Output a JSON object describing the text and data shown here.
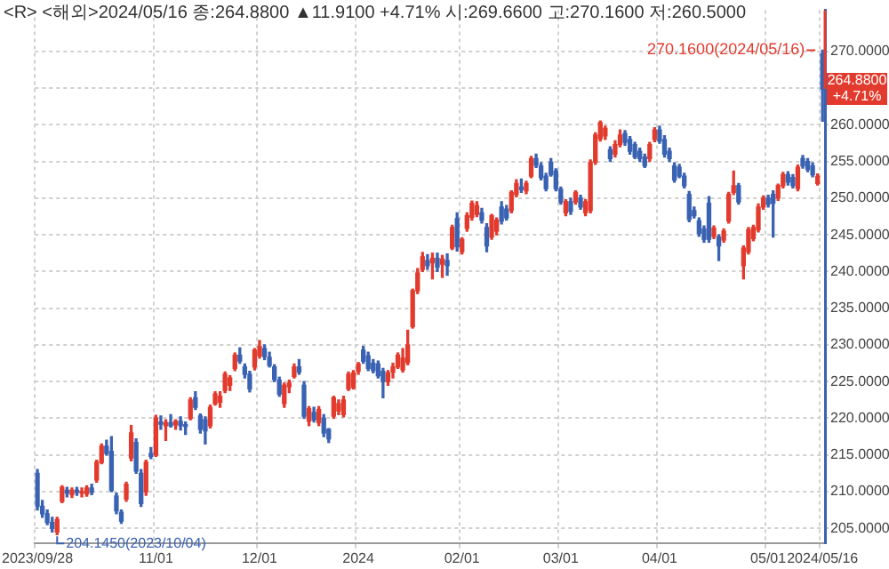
{
  "chart_data": {
    "type": "candlestick",
    "title": "<R> <해외>2024/05/16 종:264.8800 ▲11.9100 +4.71% 시:269.6600 고:270.1600 저:260.5000",
    "categories": [
      "2023/09/28",
      null,
      null,
      null,
      null,
      null,
      null,
      null,
      null,
      null,
      null,
      null,
      null,
      null,
      null,
      null,
      null,
      null,
      null,
      null,
      null,
      null,
      null,
      null,
      "11/01",
      null,
      null,
      null,
      null,
      null,
      null,
      null,
      null,
      null,
      null,
      null,
      null,
      null,
      null,
      null,
      null,
      null,
      null,
      null,
      null,
      "12/01",
      null,
      null,
      null,
      null,
      null,
      null,
      null,
      null,
      null,
      null,
      null,
      null,
      null,
      null,
      null,
      null,
      null,
      null,
      null,
      "2024",
      null,
      null,
      null,
      null,
      null,
      null,
      null,
      null,
      null,
      null,
      null,
      null,
      null,
      null,
      null,
      null,
      null,
      null,
      null,
      null,
      "02/01",
      null,
      null,
      null,
      null,
      null,
      null,
      null,
      null,
      null,
      null,
      null,
      null,
      null,
      null,
      null,
      null,
      null,
      null,
      null,
      "03/01",
      null,
      null,
      null,
      null,
      null,
      null,
      null,
      null,
      null,
      null,
      null,
      null,
      null,
      null,
      null,
      null,
      null,
      null,
      null,
      "04/01",
      null,
      null,
      null,
      null,
      null,
      null,
      null,
      null,
      null,
      null,
      null,
      null,
      null,
      null,
      null,
      null,
      null,
      null,
      null,
      null,
      null,
      "05/01",
      null,
      null,
      null,
      null,
      null,
      null,
      null,
      null,
      null,
      null,
      "2024/05/16"
    ],
    "ohlc": [
      [
        212.5,
        213,
        207.5,
        208.0
      ],
      [
        208,
        208.8,
        206.5,
        207.0
      ],
      [
        207,
        207.5,
        205.5,
        205.8
      ],
      [
        205.8,
        206.5,
        204.5,
        205.0
      ],
      [
        204.5,
        206.5,
        204.145,
        206.2
      ],
      [
        208.7,
        210.8,
        208.5,
        210.6
      ],
      [
        210.2,
        210.6,
        209.3,
        209.8
      ],
      [
        209.6,
        210.5,
        209.2,
        210.2
      ],
      [
        210.2,
        210.6,
        209.5,
        209.9
      ],
      [
        209.8,
        210.5,
        209.3,
        210.0
      ],
      [
        209.7,
        210.8,
        209.4,
        210.5
      ],
      [
        210.5,
        211,
        209.6,
        209.9
      ],
      [
        211.6,
        214.3,
        211.3,
        214.0
      ],
      [
        214,
        216.5,
        213.8,
        216.2
      ],
      [
        216.2,
        217.0,
        215.0,
        215.2
      ],
      [
        215.5,
        217.5,
        210,
        210.2
      ],
      [
        209.4,
        209.8,
        207,
        207.4
      ],
      [
        207.2,
        207.5,
        205.7,
        206.0
      ],
      [
        209,
        211.3,
        208.7,
        211.0
      ],
      [
        214.6,
        219.0,
        214.2,
        218.0
      ],
      [
        216.7,
        217.2,
        212.5,
        212.8
      ],
      [
        212.5,
        213,
        208,
        208.4
      ],
      [
        210,
        214.3,
        209.5,
        214.0
      ],
      [
        215.2,
        216,
        214.5,
        214.8
      ],
      [
        215,
        220.4,
        214.8,
        220
      ],
      [
        219.5,
        220.3,
        218.5,
        219.2
      ],
      [
        219,
        219.8,
        217,
        219.4
      ],
      [
        219.4,
        220.5,
        218.8,
        219.0
      ],
      [
        219.1,
        219.8,
        218.5,
        219.6
      ],
      [
        219.6,
        220.2,
        218.4,
        219.0
      ],
      [
        219,
        219.5,
        217.8,
        218.9
      ],
      [
        220,
        222.8,
        219.8,
        222.5
      ],
      [
        222.8,
        223.6,
        221.2,
        221.5
      ],
      [
        220.3,
        220.6,
        218,
        218.5
      ],
      [
        219.8,
        220.2,
        216.5,
        218.3
      ],
      [
        219,
        221.8,
        218.7,
        221.5
      ],
      [
        222,
        223.6,
        221.8,
        223.3
      ],
      [
        222.2,
        223.6,
        221.5,
        223.0
      ],
      [
        223.8,
        226.3,
        223.5,
        226.0
      ],
      [
        224.5,
        225.8,
        223.8,
        225.5
      ],
      [
        226.8,
        228.9,
        226.5,
        228.6
      ],
      [
        228.6,
        229.6,
        227.5,
        227.8
      ],
      [
        227,
        227.4,
        225.5,
        226.0
      ],
      [
        226,
        226.4,
        223.6,
        224.0
      ],
      [
        227,
        229.5,
        226.6,
        229.3
      ],
      [
        228.5,
        230.6,
        228.2,
        229.8
      ],
      [
        229.5,
        230.0,
        228.0,
        228.4
      ],
      [
        228.3,
        229,
        227,
        227.2
      ],
      [
        227,
        227.3,
        225,
        225.3
      ],
      [
        225.2,
        225.6,
        223.0,
        223.3
      ],
      [
        222,
        224.8,
        221.5,
        224.5
      ],
      [
        224.3,
        225.2,
        223.5,
        224.8
      ],
      [
        225.7,
        227.4,
        225.5,
        227.0
      ],
      [
        227,
        228,
        226,
        226.3
      ],
      [
        224.5,
        225,
        220,
        220.3
      ],
      [
        219.6,
        221.6,
        219,
        221.3
      ],
      [
        220.8,
        221.5,
        219.5,
        219.8
      ],
      [
        219.4,
        221.6,
        219,
        221.2
      ],
      [
        220,
        220.5,
        217.5,
        218.0
      ],
      [
        218.5,
        218.6,
        216.7,
        217.2
      ],
      [
        220.3,
        223,
        220,
        222.8
      ],
      [
        221,
        222.5,
        220.5,
        222.0
      ],
      [
        220.5,
        223,
        220.2,
        222.5
      ],
      [
        224,
        226.3,
        223.8,
        226.0
      ],
      [
        224.2,
        226.5,
        224,
        226.2
      ],
      [
        226.4,
        227.6,
        226,
        227.4
      ],
      [
        229.3,
        229.8,
        227.5,
        227.8
      ],
      [
        228.5,
        229,
        226.5,
        226.8
      ],
      [
        227.5,
        228,
        226.2,
        226.5
      ],
      [
        227.4,
        227.8,
        225.5,
        225.8
      ],
      [
        226.4,
        226.8,
        222.8,
        225.0
      ],
      [
        225,
        226.5,
        224.5,
        226.2
      ],
      [
        226.3,
        227.5,
        225.5,
        227.0
      ],
      [
        227,
        228.9,
        226.8,
        228.6
      ],
      [
        226.6,
        229.5,
        226.3,
        228.2
      ],
      [
        227.6,
        232,
        227.3,
        230.0
      ],
      [
        232.5,
        237.6,
        232.3,
        237.4
      ],
      [
        237.4,
        240.4,
        237,
        239.8
      ],
      [
        240.3,
        242.6,
        240,
        242.0
      ],
      [
        241.5,
        242.3,
        240.3,
        240.8
      ],
      [
        241.2,
        242.5,
        239,
        241.8
      ],
      [
        241.8,
        242.5,
        240,
        240.6
      ],
      [
        241,
        242.2,
        239.2,
        241.7
      ],
      [
        241.5,
        242.4,
        239.5,
        240.8
      ],
      [
        243.2,
        246.3,
        243,
        246
      ],
      [
        247.2,
        248,
        242.8,
        243.4
      ],
      [
        242.7,
        244.6,
        242.4,
        244.4
      ],
      [
        245.9,
        248,
        245.5,
        247.6
      ],
      [
        247.4,
        249.6,
        247,
        249.3
      ],
      [
        247.8,
        249.5,
        247.5,
        249.0
      ],
      [
        248,
        248.6,
        246.6,
        247
      ],
      [
        246,
        246.5,
        242.7,
        243.5
      ],
      [
        244.7,
        247.8,
        244.4,
        247.6
      ],
      [
        245.5,
        247.3,
        245,
        247.0
      ],
      [
        248.8,
        249.5,
        246.5,
        246.9
      ],
      [
        248.5,
        249,
        247,
        247.3
      ],
      [
        248.3,
        251,
        248,
        250.8
      ],
      [
        250.5,
        252.5,
        250.2,
        252.0
      ],
      [
        251.5,
        252.6,
        250.8,
        251.2
      ],
      [
        251,
        252.3,
        250.6,
        252.0
      ],
      [
        253,
        255.7,
        252.8,
        255.4
      ],
      [
        255.4,
        256,
        254.2,
        254.5
      ],
      [
        254.4,
        254.8,
        252.5,
        252.8
      ],
      [
        253,
        253.4,
        251,
        251.3
      ],
      [
        254.9,
        255.4,
        253,
        253.2
      ],
      [
        253.7,
        254,
        251,
        251.3
      ],
      [
        251.2,
        251.5,
        249.2,
        249.5
      ],
      [
        248,
        249.8,
        247.6,
        249.5
      ],
      [
        249.5,
        250,
        247.8,
        248.2
      ],
      [
        249.5,
        251,
        249.2,
        250.8
      ],
      [
        250,
        250.4,
        248.5,
        248.8
      ],
      [
        248,
        249.8,
        247.6,
        249.5
      ],
      [
        248.3,
        255.2,
        248,
        254.9
      ],
      [
        254.9,
        258.9,
        254.6,
        258.6
      ],
      [
        258.1,
        260.5,
        257.8,
        260.3
      ],
      [
        258.5,
        259.8,
        258,
        259.5
      ],
      [
        256.6,
        257,
        255,
        255.4
      ],
      [
        256,
        257.8,
        255.6,
        257.3
      ],
      [
        257.3,
        259.3,
        257,
        258.6
      ],
      [
        258.8,
        259.2,
        257.2,
        257.6
      ],
      [
        258,
        258.4,
        256,
        256.4
      ],
      [
        257.3,
        257.6,
        255.4,
        255.6
      ],
      [
        256.4,
        256.8,
        255,
        255.4
      ],
      [
        255.6,
        256,
        254.2,
        254.4
      ],
      [
        255.4,
        257.6,
        255,
        257.3
      ],
      [
        258,
        259.6,
        257.7,
        259.3
      ],
      [
        259.3,
        259.8,
        257.5,
        257.8
      ],
      [
        258,
        258.5,
        255.6,
        256.0
      ],
      [
        256.4,
        256.8,
        255,
        255.4
      ],
      [
        254.4,
        254.8,
        252.2,
        252.5
      ],
      [
        254.2,
        254.6,
        252.8,
        253.0
      ],
      [
        253,
        253.4,
        251.4,
        251.7
      ],
      [
        250.5,
        250.9,
        246.8,
        247.1
      ],
      [
        248.3,
        248.8,
        247.3,
        247.6
      ],
      [
        246.9,
        247.3,
        244.8,
        245.2
      ],
      [
        245.8,
        246.2,
        244,
        244.4
      ],
      [
        249.3,
        250.2,
        244,
        244.4
      ],
      [
        244.8,
        246.2,
        244.5,
        245.9
      ],
      [
        244.7,
        245,
        241.5,
        243.5
      ],
      [
        244.3,
        245.8,
        244,
        245.5
      ],
      [
        246.9,
        250.8,
        246.6,
        250.5
      ],
      [
        250.8,
        253.7,
        250.5,
        251.7
      ],
      [
        251.7,
        252,
        249.2,
        249.5
      ],
      [
        240.8,
        243.5,
        239,
        243.2
      ],
      [
        242.7,
        246,
        242.4,
        245.7
      ],
      [
        244.5,
        246.3,
        244.2,
        246.0
      ],
      [
        245.7,
        249.2,
        245.4,
        248.8
      ],
      [
        248.8,
        250.3,
        248.5,
        250.0
      ],
      [
        250,
        250.4,
        248.8,
        249.2
      ],
      [
        250.5,
        251,
        244.7,
        249.3
      ],
      [
        250,
        251.9,
        249.7,
        251.7
      ],
      [
        251.7,
        253.5,
        251.4,
        253.2
      ],
      [
        253.2,
        253.6,
        251.8,
        252.2
      ],
      [
        252.8,
        253.2,
        251.4,
        251.7
      ],
      [
        251.3,
        254.5,
        251,
        254.2
      ],
      [
        255.4,
        255.8,
        254.1,
        254.4
      ],
      [
        255,
        255.4,
        253.6,
        253.9
      ],
      [
        254.4,
        254.8,
        252.9,
        253.2
      ],
      [
        252,
        253.3,
        251.8,
        252.97
      ],
      [
        269.66,
        270.16,
        260.5,
        264.88
      ]
    ],
    "colors": [
      "#3a62b2",
      "#3a62b2",
      "#3a62b2",
      "#3a62b2",
      "#e23b2e",
      "#e23b2e",
      "#3a62b2",
      "#e23b2e",
      "#3a62b2",
      "#e23b2e",
      "#e23b2e",
      "#3a62b2",
      "#e23b2e",
      "#e23b2e",
      "#3a62b2",
      "#3a62b2",
      "#3a62b2",
      "#3a62b2",
      "#e23b2e",
      "#e23b2e",
      "#3a62b2",
      "#3a62b2",
      "#e23b2e",
      "#3a62b2",
      "#e23b2e",
      "#3a62b2",
      "#e23b2e",
      "#3a62b2",
      "#e23b2e",
      "#3a62b2",
      "#3a62b2",
      "#e23b2e",
      "#3a62b2",
      "#3a62b2",
      "#3a62b2",
      "#e23b2e",
      "#e23b2e",
      "#e23b2e",
      "#e23b2e",
      "#e23b2e",
      "#e23b2e",
      "#3a62b2",
      "#3a62b2",
      "#3a62b2",
      "#e23b2e",
      "#e23b2e",
      "#3a62b2",
      "#3a62b2",
      "#3a62b2",
      "#3a62b2",
      "#e23b2e",
      "#e23b2e",
      "#e23b2e",
      "#3a62b2",
      "#3a62b2",
      "#e23b2e",
      "#3a62b2",
      "#e23b2e",
      "#3a62b2",
      "#3a62b2",
      "#e23b2e",
      "#e23b2e",
      "#e23b2e",
      "#e23b2e",
      "#e23b2e",
      "#e23b2e",
      "#3a62b2",
      "#3a62b2",
      "#3a62b2",
      "#3a62b2",
      "#3a62b2",
      "#e23b2e",
      "#e23b2e",
      "#e23b2e",
      "#e23b2e",
      "#e23b2e",
      "#e23b2e",
      "#e23b2e",
      "#e23b2e",
      "#3a62b2",
      "#e23b2e",
      "#3a62b2",
      "#e23b2e",
      "#3a62b2",
      "#e23b2e",
      "#3a62b2",
      "#e23b2e",
      "#e23b2e",
      "#e23b2e",
      "#e23b2e",
      "#3a62b2",
      "#3a62b2",
      "#e23b2e",
      "#e23b2e",
      "#3a62b2",
      "#3a62b2",
      "#e23b2e",
      "#e23b2e",
      "#3a62b2",
      "#e23b2e",
      "#e23b2e",
      "#3a62b2",
      "#3a62b2",
      "#3a62b2",
      "#3a62b2",
      "#3a62b2",
      "#3a62b2",
      "#e23b2e",
      "#3a62b2",
      "#e23b2e",
      "#3a62b2",
      "#e23b2e",
      "#e23b2e",
      "#e23b2e",
      "#e23b2e",
      "#e23b2e",
      "#3a62b2",
      "#e23b2e",
      "#e23b2e",
      "#3a62b2",
      "#3a62b2",
      "#3a62b2",
      "#3a62b2",
      "#3a62b2",
      "#e23b2e",
      "#e23b2e",
      "#3a62b2",
      "#3a62b2",
      "#3a62b2",
      "#3a62b2",
      "#3a62b2",
      "#3a62b2",
      "#3a62b2",
      "#3a62b2",
      "#3a62b2",
      "#3a62b2",
      "#3a62b2",
      "#e23b2e",
      "#3a62b2",
      "#e23b2e",
      "#e23b2e",
      "#e23b2e",
      "#3a62b2",
      "#e23b2e",
      "#e23b2e",
      "#e23b2e",
      "#e23b2e",
      "#e23b2e",
      "#3a62b2",
      "#3a62b2",
      "#e23b2e",
      "#e23b2e",
      "#3a62b2",
      "#3a62b2",
      "#e23b2e",
      "#3a62b2",
      "#3a62b2",
      "#3a62b2",
      "#e23b2e",
      "#3a62b2"
    ],
    "ylim": [
      203,
      275.6
    ],
    "yticks": [
      {
        "value": 205,
        "label": "205.0000"
      },
      {
        "value": 210,
        "label": "210.0000"
      },
      {
        "value": 215,
        "label": "215.0000"
      },
      {
        "value": 220,
        "label": "220.0000"
      },
      {
        "value": 225,
        "label": "225.0000"
      },
      {
        "value": 230,
        "label": "230.0000"
      },
      {
        "value": 235,
        "label": "235.0000"
      },
      {
        "value": 240,
        "label": "240.0000"
      },
      {
        "value": 245,
        "label": "245.0000"
      },
      {
        "value": 250,
        "label": "250.0000"
      },
      {
        "value": 255,
        "label": "255.0000"
      },
      {
        "value": 260,
        "label": "260.0000"
      },
      {
        "value": 265,
        "label": null
      },
      {
        "value": 270,
        "label": "270.0000"
      }
    ],
    "grid": true,
    "annotations": [
      "270.1600(2024/05/16)",
      "204.1450(2023/10/04)",
      {
        "text": "264.8800 +4.71%",
        "y": 264.88
      }
    ]
  }
}
